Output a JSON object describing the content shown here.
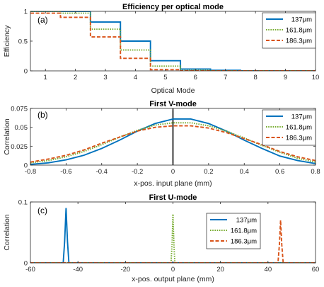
{
  "colors": {
    "s137": "#0072BD",
    "s161": "#77AC30",
    "s186": "#D95319",
    "axis": "#262626",
    "marker": "#000000"
  },
  "chart_data": [
    {
      "type": "line",
      "panel_label": "(a)",
      "title": "Efficiency per optical mode",
      "xlabel": "Optical Mode",
      "ylabel": "Efficiency",
      "xlim": [
        0.5,
        10
      ],
      "ylim": [
        0,
        1
      ],
      "xticks": [
        1,
        2,
        3,
        4,
        5,
        6,
        7,
        8,
        9,
        10
      ],
      "yticks": [
        0,
        0.5,
        1
      ],
      "step": true,
      "legend_position": "top-right",
      "series": [
        {
          "name": "137μm",
          "color_key": "s137",
          "style": "solid",
          "x": [
            1,
            2,
            3,
            4,
            5,
            6,
            7,
            8,
            9,
            10
          ],
          "y": [
            1.0,
            1.0,
            0.82,
            0.5,
            0.17,
            0.03,
            0.01,
            0.0,
            0.0,
            0.0
          ]
        },
        {
          "name": "161.8μm",
          "color_key": "s161",
          "style": "dotted",
          "x": [
            1,
            2,
            3,
            4,
            5,
            6,
            7,
            8,
            9,
            10
          ],
          "y": [
            1.0,
            0.97,
            0.7,
            0.35,
            0.08,
            0.01,
            0.0,
            0.0,
            0.0,
            0.0
          ]
        },
        {
          "name": "186.3μm",
          "color_key": "s186",
          "style": "dashed",
          "x": [
            1,
            2,
            3,
            4,
            5,
            6,
            7,
            8,
            9,
            10
          ],
          "y": [
            0.97,
            0.9,
            0.57,
            0.21,
            0.02,
            0.0,
            0.0,
            0.0,
            0.0,
            0.0
          ]
        }
      ]
    },
    {
      "type": "line",
      "panel_label": "(b)",
      "title": "First V-mode",
      "xlabel": "x-pos. input plane (mm)",
      "ylabel": "Correlation",
      "xlim": [
        -0.8,
        0.8
      ],
      "ylim": [
        0,
        0.075
      ],
      "xticks": [
        -0.8,
        -0.6,
        -0.4,
        -0.2,
        0,
        0.2,
        0.4,
        0.6,
        0.8
      ],
      "yticks": [
        0,
        0.025,
        0.05,
        0.075
      ],
      "vline_x": 0,
      "legend_position": "top-right",
      "series": [
        {
          "name": "137μm",
          "color_key": "s137",
          "style": "solid",
          "x": [
            -0.8,
            -0.7,
            -0.6,
            -0.5,
            -0.4,
            -0.3,
            -0.2,
            -0.1,
            0,
            0.1,
            0.2,
            0.3,
            0.4,
            0.5,
            0.6,
            0.7,
            0.8
          ],
          "y": [
            0.001,
            0.003,
            0.007,
            0.013,
            0.022,
            0.033,
            0.045,
            0.055,
            0.061,
            0.061,
            0.055,
            0.045,
            0.033,
            0.022,
            0.012,
            0.006,
            0.002
          ]
        },
        {
          "name": "161.8μm",
          "color_key": "s161",
          "style": "dotted",
          "x": [
            -0.8,
            -0.7,
            -0.6,
            -0.5,
            -0.4,
            -0.3,
            -0.2,
            -0.1,
            0,
            0.1,
            0.2,
            0.3,
            0.4,
            0.5,
            0.6,
            0.7,
            0.8
          ],
          "y": [
            0.003,
            0.006,
            0.011,
            0.018,
            0.027,
            0.037,
            0.046,
            0.053,
            0.056,
            0.056,
            0.052,
            0.045,
            0.036,
            0.026,
            0.017,
            0.009,
            0.004
          ]
        },
        {
          "name": "186.3μm",
          "color_key": "s186",
          "style": "dashed",
          "x": [
            -0.8,
            -0.7,
            -0.6,
            -0.5,
            -0.4,
            -0.3,
            -0.2,
            -0.1,
            0,
            0.1,
            0.2,
            0.3,
            0.4,
            0.5,
            0.6,
            0.7,
            0.8
          ],
          "y": [
            0.004,
            0.008,
            0.013,
            0.02,
            0.029,
            0.037,
            0.045,
            0.05,
            0.052,
            0.052,
            0.049,
            0.043,
            0.035,
            0.027,
            0.018,
            0.011,
            0.006
          ]
        }
      ]
    },
    {
      "type": "line",
      "panel_label": "(c)",
      "title": "First U-mode",
      "xlabel": "x-pos. output plane (mm)",
      "ylabel": "Correlation",
      "xlim": [
        -60,
        60
      ],
      "ylim": [
        0,
        0.1
      ],
      "xticks": [
        -60,
        -40,
        -20,
        0,
        20,
        40,
        60
      ],
      "yticks": [
        0,
        0.1
      ],
      "legend_position": "top-right",
      "series": [
        {
          "name": "137μm",
          "color_key": "s137",
          "style": "solid",
          "x": [
            -60,
            -46.2,
            -45.6,
            -45.0,
            -44.4,
            -43.8,
            60
          ],
          "y": [
            0,
            0,
            0.035,
            0.09,
            0.035,
            0,
            0
          ]
        },
        {
          "name": "161.8μm",
          "color_key": "s161",
          "style": "dotted",
          "x": [
            -60,
            -0.8,
            -0.4,
            0,
            0.4,
            0.8,
            60
          ],
          "y": [
            0,
            0,
            0.03,
            0.08,
            0.03,
            0,
            0
          ]
        },
        {
          "name": "186.3μm",
          "color_key": "s186",
          "style": "dashed",
          "x": [
            -60,
            44.2,
            44.8,
            45.3,
            45.8,
            46.4,
            60
          ],
          "y": [
            0,
            0,
            0.03,
            0.07,
            0.03,
            0,
            0
          ]
        }
      ]
    }
  ]
}
